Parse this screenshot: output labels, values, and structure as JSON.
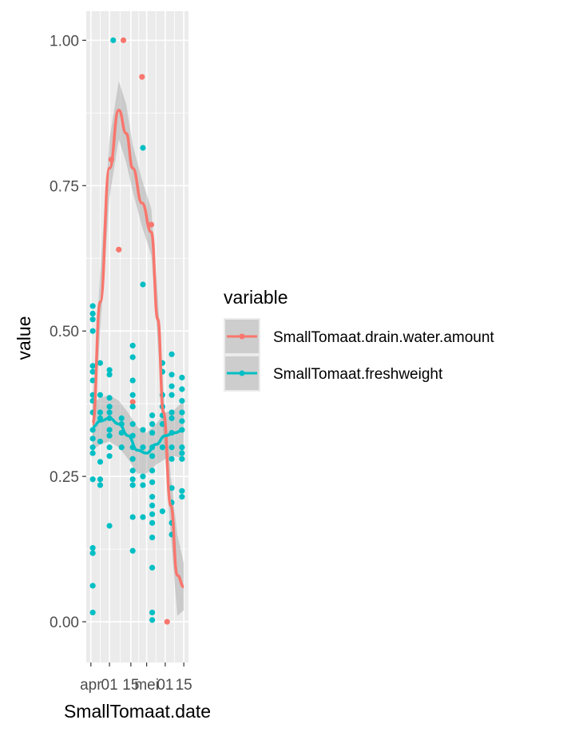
{
  "chart_data": {
    "type": "scatter",
    "xlabel": "SmallTomaat.date",
    "ylabel": "value",
    "x_tick_labels": [
      "apr",
      "01",
      "15",
      "mei",
      "01",
      "15"
    ],
    "x_tick_positions": [
      0.0,
      0.2,
      0.43,
      0.6,
      0.8,
      1.0
    ],
    "xlim": [
      0,
      1
    ],
    "ylim": [
      -0.07,
      1.05
    ],
    "y_ticks": [
      0.0,
      0.25,
      0.5,
      0.75,
      1.0
    ],
    "y_tick_labels": [
      "0.00",
      "0.25",
      "0.50",
      "0.75",
      "1.00"
    ],
    "grid": true,
    "legend_position": "right",
    "legend": {
      "title": "variable",
      "entries": [
        "SmallTomaat.drain.water.amount",
        "SmallTomaat.freshweight"
      ]
    },
    "colors": {
      "drain": "#F8766D",
      "fresh": "#00BFC4",
      "panel": "#EBEBEB",
      "band": "#999999"
    },
    "series": [
      {
        "name": "SmallTomaat.drain.water.amount",
        "points": [
          [
            0.22,
            0.795
          ],
          [
            0.35,
            1.0
          ],
          [
            0.3,
            0.64
          ],
          [
            0.55,
            0.937
          ],
          [
            0.45,
            0.378
          ],
          [
            0.65,
            0.683
          ],
          [
            0.82,
            0.0
          ]
        ],
        "smooth": [
          [
            0.02,
            0.34
          ],
          [
            0.1,
            0.55
          ],
          [
            0.2,
            0.78
          ],
          [
            0.3,
            0.88
          ],
          [
            0.38,
            0.84
          ],
          [
            0.45,
            0.78
          ],
          [
            0.55,
            0.72
          ],
          [
            0.65,
            0.67
          ],
          [
            0.72,
            0.52
          ],
          [
            0.78,
            0.36
          ],
          [
            0.86,
            0.2
          ],
          [
            0.93,
            0.08
          ],
          [
            1.0,
            0.06
          ]
        ],
        "band_upper": [
          [
            0.02,
            0.38
          ],
          [
            0.1,
            0.6
          ],
          [
            0.2,
            0.83
          ],
          [
            0.3,
            0.93
          ],
          [
            0.38,
            0.89
          ],
          [
            0.45,
            0.82
          ],
          [
            0.55,
            0.76
          ],
          [
            0.65,
            0.71
          ],
          [
            0.72,
            0.56
          ],
          [
            0.78,
            0.4
          ],
          [
            0.86,
            0.25
          ],
          [
            0.93,
            0.15
          ],
          [
            1.0,
            0.1
          ]
        ],
        "band_lower": [
          [
            0.02,
            0.3
          ],
          [
            0.1,
            0.5
          ],
          [
            0.2,
            0.73
          ],
          [
            0.3,
            0.83
          ],
          [
            0.38,
            0.79
          ],
          [
            0.45,
            0.74
          ],
          [
            0.55,
            0.68
          ],
          [
            0.65,
            0.63
          ],
          [
            0.72,
            0.48
          ],
          [
            0.78,
            0.32
          ],
          [
            0.86,
            0.15
          ],
          [
            0.93,
            0.01
          ],
          [
            1.0,
            0.02
          ]
        ]
      },
      {
        "name": "SmallTomaat.freshweight",
        "points": [
          [
            0.02,
            0.543
          ],
          [
            0.02,
            0.53
          ],
          [
            0.02,
            0.52
          ],
          [
            0.02,
            0.5
          ],
          [
            0.02,
            0.44
          ],
          [
            0.02,
            0.43
          ],
          [
            0.02,
            0.415
          ],
          [
            0.02,
            0.39
          ],
          [
            0.02,
            0.38
          ],
          [
            0.02,
            0.36
          ],
          [
            0.02,
            0.33
          ],
          [
            0.02,
            0.315
          ],
          [
            0.02,
            0.3
          ],
          [
            0.02,
            0.29
          ],
          [
            0.02,
            0.245
          ],
          [
            0.02,
            0.127
          ],
          [
            0.02,
            0.118
          ],
          [
            0.02,
            0.062
          ],
          [
            0.02,
            0.016
          ],
          [
            0.1,
            0.445
          ],
          [
            0.1,
            0.39
          ],
          [
            0.1,
            0.36
          ],
          [
            0.1,
            0.35
          ],
          [
            0.1,
            0.31
          ],
          [
            0.1,
            0.275
          ],
          [
            0.1,
            0.245
          ],
          [
            0.1,
            0.235
          ],
          [
            0.2,
            0.433
          ],
          [
            0.2,
            0.425
          ],
          [
            0.2,
            0.385
          ],
          [
            0.2,
            0.37
          ],
          [
            0.2,
            0.36
          ],
          [
            0.2,
            0.35
          ],
          [
            0.2,
            0.33
          ],
          [
            0.2,
            0.32
          ],
          [
            0.2,
            0.3
          ],
          [
            0.2,
            0.285
          ],
          [
            0.2,
            0.165
          ],
          [
            0.24,
            1.0
          ],
          [
            0.33,
            0.35
          ],
          [
            0.33,
            0.34
          ],
          [
            0.33,
            0.325
          ],
          [
            0.33,
            0.3
          ],
          [
            0.45,
            0.475
          ],
          [
            0.45,
            0.455
          ],
          [
            0.45,
            0.415
          ],
          [
            0.45,
            0.39
          ],
          [
            0.45,
            0.37
          ],
          [
            0.45,
            0.34
          ],
          [
            0.45,
            0.32
          ],
          [
            0.45,
            0.3
          ],
          [
            0.45,
            0.28
          ],
          [
            0.45,
            0.26
          ],
          [
            0.45,
            0.245
          ],
          [
            0.45,
            0.235
          ],
          [
            0.45,
            0.18
          ],
          [
            0.45,
            0.122
          ],
          [
            0.56,
            0.815
          ],
          [
            0.56,
            0.58
          ],
          [
            0.56,
            0.33
          ],
          [
            0.56,
            0.3
          ],
          [
            0.56,
            0.25
          ],
          [
            0.56,
            0.235
          ],
          [
            0.56,
            0.18
          ],
          [
            0.66,
            0.355
          ],
          [
            0.66,
            0.34
          ],
          [
            0.66,
            0.325
          ],
          [
            0.66,
            0.3
          ],
          [
            0.66,
            0.285
          ],
          [
            0.66,
            0.26
          ],
          [
            0.66,
            0.24
          ],
          [
            0.66,
            0.215
          ],
          [
            0.66,
            0.2
          ],
          [
            0.66,
            0.185
          ],
          [
            0.66,
            0.17
          ],
          [
            0.66,
            0.145
          ],
          [
            0.66,
            0.093
          ],
          [
            0.66,
            0.016
          ],
          [
            0.66,
            0.003
          ],
          [
            0.77,
            0.445
          ],
          [
            0.77,
            0.43
          ],
          [
            0.77,
            0.39
          ],
          [
            0.77,
            0.37
          ],
          [
            0.77,
            0.355
          ],
          [
            0.77,
            0.34
          ],
          [
            0.77,
            0.3
          ],
          [
            0.77,
            0.19
          ],
          [
            0.87,
            0.46
          ],
          [
            0.87,
            0.425
          ],
          [
            0.87,
            0.405
          ],
          [
            0.87,
            0.39
          ],
          [
            0.87,
            0.36
          ],
          [
            0.87,
            0.35
          ],
          [
            0.87,
            0.325
          ],
          [
            0.87,
            0.3
          ],
          [
            0.87,
            0.28
          ],
          [
            0.87,
            0.23
          ],
          [
            0.87,
            0.205
          ],
          [
            0.87,
            0.17
          ],
          [
            0.87,
            0.15
          ],
          [
            0.98,
            0.42
          ],
          [
            0.98,
            0.4
          ],
          [
            0.98,
            0.38
          ],
          [
            0.98,
            0.36
          ],
          [
            0.98,
            0.345
          ],
          [
            0.98,
            0.33
          ],
          [
            0.98,
            0.3
          ],
          [
            0.98,
            0.29
          ],
          [
            0.98,
            0.28
          ],
          [
            0.98,
            0.225
          ],
          [
            0.98,
            0.215
          ]
        ],
        "smooth": [
          [
            0.02,
            0.335
          ],
          [
            0.1,
            0.345
          ],
          [
            0.2,
            0.35
          ],
          [
            0.3,
            0.34
          ],
          [
            0.4,
            0.32
          ],
          [
            0.5,
            0.295
          ],
          [
            0.6,
            0.29
          ],
          [
            0.7,
            0.305
          ],
          [
            0.8,
            0.32
          ],
          [
            0.9,
            0.325
          ],
          [
            1.0,
            0.33
          ]
        ],
        "band_upper": [
          [
            0.02,
            0.375
          ],
          [
            0.1,
            0.385
          ],
          [
            0.2,
            0.39
          ],
          [
            0.3,
            0.38
          ],
          [
            0.4,
            0.36
          ],
          [
            0.5,
            0.335
          ],
          [
            0.6,
            0.325
          ],
          [
            0.7,
            0.34
          ],
          [
            0.8,
            0.36
          ],
          [
            0.9,
            0.365
          ],
          [
            1.0,
            0.38
          ]
        ],
        "band_lower": [
          [
            0.02,
            0.295
          ],
          [
            0.1,
            0.305
          ],
          [
            0.2,
            0.31
          ],
          [
            0.3,
            0.3
          ],
          [
            0.4,
            0.28
          ],
          [
            0.5,
            0.255
          ],
          [
            0.6,
            0.255
          ],
          [
            0.7,
            0.27
          ],
          [
            0.8,
            0.28
          ],
          [
            0.9,
            0.285
          ],
          [
            1.0,
            0.28
          ]
        ]
      }
    ]
  }
}
